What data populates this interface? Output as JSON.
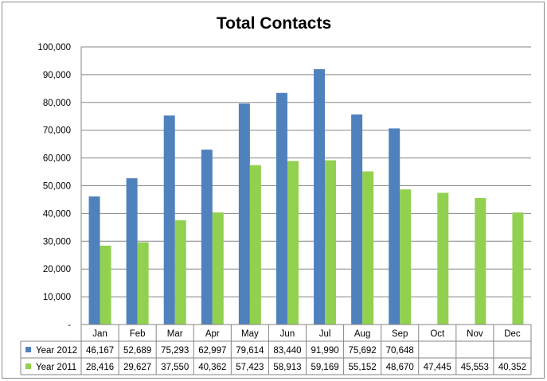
{
  "chart_data": {
    "type": "bar",
    "title": "Total Contacts",
    "categories": [
      "Jan",
      "Feb",
      "Mar",
      "Apr",
      "May",
      "Jun",
      "Jul",
      "Aug",
      "Sep",
      "Oct",
      "Nov",
      "Dec"
    ],
    "series": [
      {
        "name": "Year 2012",
        "color": "#4f81bd",
        "values": [
          46167,
          52689,
          75293,
          62997,
          79614,
          83440,
          91990,
          75692,
          70648,
          null,
          null,
          null
        ],
        "labels": [
          "46,167",
          "52,689",
          "75,293",
          "62,997",
          "79,614",
          "83,440",
          "91,990",
          "75,692",
          "70,648",
          "",
          "",
          ""
        ]
      },
      {
        "name": "Year 2011",
        "color": "#92d050",
        "values": [
          28416,
          29627,
          37550,
          40362,
          57423,
          58913,
          59169,
          55152,
          48670,
          47445,
          45553,
          40352
        ],
        "labels": [
          "28,416",
          "29,627",
          "37,550",
          "40,362",
          "57,423",
          "58,913",
          "59,169",
          "55,152",
          "48,670",
          "47,445",
          "45,553",
          "40,352"
        ]
      }
    ],
    "ylim": [
      0,
      100000
    ],
    "ytick_labels": [
      "-",
      "10,000",
      "20,000",
      "30,000",
      "40,000",
      "50,000",
      "60,000",
      "70,000",
      "80,000",
      "90,000",
      "100,000"
    ],
    "grid": true,
    "legend": "data-table",
    "xlabel": "",
    "ylabel": ""
  }
}
